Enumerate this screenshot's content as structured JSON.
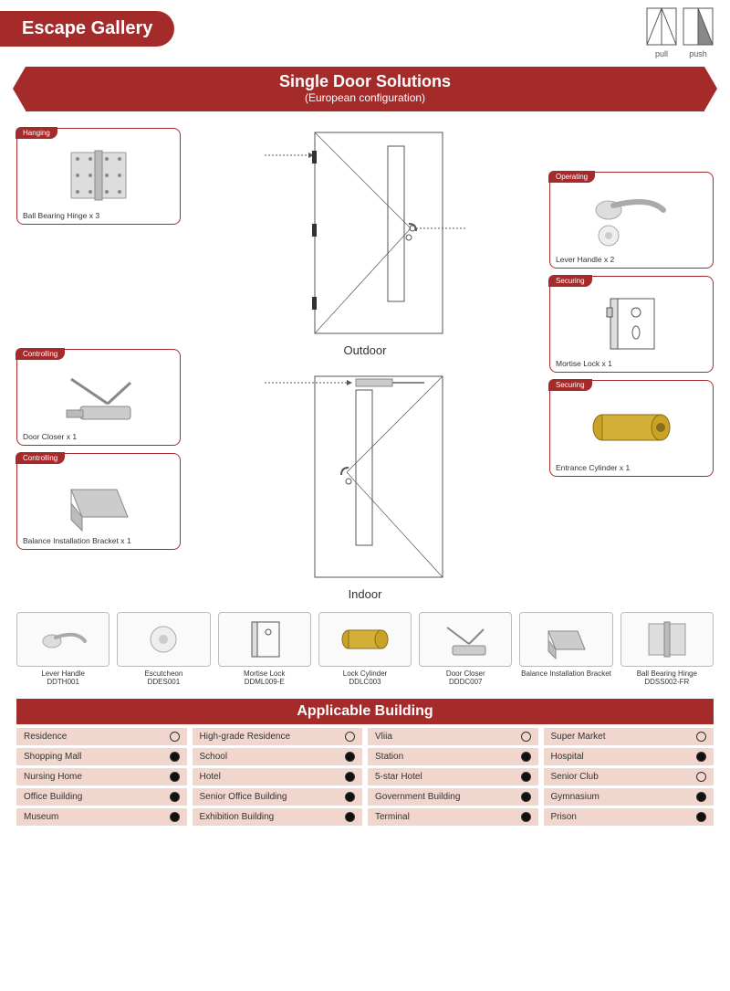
{
  "brand_color": "#a52a2a",
  "header": {
    "title": "Escape Gallery"
  },
  "door_icons": [
    {
      "label": "pull"
    },
    {
      "label": "push"
    }
  ],
  "banner": {
    "title": "Single Door Solutions",
    "subtitle": "(European configuration)"
  },
  "doors": {
    "outdoor": "Outdoor",
    "indoor": "Indoor"
  },
  "cards": {
    "hanging": {
      "tag": "Hanging",
      "label": "Ball Bearing Hinge x 3"
    },
    "controlling1": {
      "tag": "Controlling",
      "label": "Door Closer x 1"
    },
    "controlling2": {
      "tag": "Controlling",
      "label": "Balance Installation Bracket x 1"
    },
    "operating": {
      "tag": "Operating",
      "label": "Lever Handle x 2"
    },
    "securing1": {
      "tag": "Securing",
      "label": "Mortise Lock x 1"
    },
    "securing2": {
      "tag": "Securing",
      "label": "Entrance Cylinder x 1"
    }
  },
  "products": [
    {
      "name": "Lever Handle",
      "code": "DDTH001"
    },
    {
      "name": "Escutcheon",
      "code": "DDES001"
    },
    {
      "name": "Mortise Lock",
      "code": "DDML009-E"
    },
    {
      "name": "Lock Cylinder",
      "code": "DDLC003"
    },
    {
      "name": "Door Closer",
      "code": "DDDC007"
    },
    {
      "name": "Balance Installation Bracket",
      "code": ""
    },
    {
      "name": "Ball Bearing Hinge",
      "code": "DDSS002-FR"
    }
  ],
  "applicable_header": "Applicable Building",
  "applicable": [
    {
      "name": "Residence",
      "filled": false
    },
    {
      "name": "High-grade Residence",
      "filled": false
    },
    {
      "name": "Vliia",
      "filled": false
    },
    {
      "name": "Super Market",
      "filled": false
    },
    {
      "name": "Shopping Mall",
      "filled": true
    },
    {
      "name": "School",
      "filled": true
    },
    {
      "name": "Station",
      "filled": true
    },
    {
      "name": "Hospital",
      "filled": true
    },
    {
      "name": "Nursing Home",
      "filled": true
    },
    {
      "name": "Hotel",
      "filled": true
    },
    {
      "name": "5-star Hotel",
      "filled": true
    },
    {
      "name": "Senior Club",
      "filled": false
    },
    {
      "name": "Office Building",
      "filled": true
    },
    {
      "name": "Senior Office Building",
      "filled": true
    },
    {
      "name": "Government Building",
      "filled": true
    },
    {
      "name": "Gymnasium",
      "filled": true
    },
    {
      "name": "Museum",
      "filled": true
    },
    {
      "name": "Exhibition Building",
      "filled": true
    },
    {
      "name": "Terminal",
      "filled": true
    },
    {
      "name": "Prison",
      "filled": true
    }
  ]
}
